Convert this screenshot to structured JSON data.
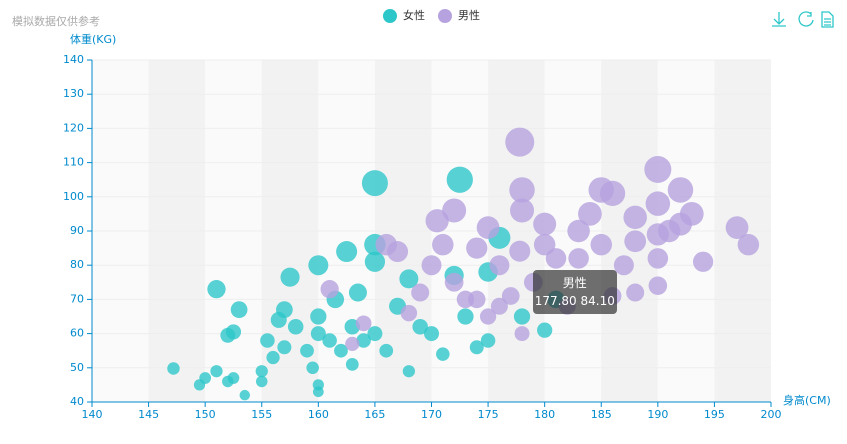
{
  "chart_data": {
    "type": "scatter",
    "subtitle": "模拟数据仅供参考",
    "x_label": "身高(CM)",
    "y_label": "体重(KG)",
    "xlim": [
      140,
      200
    ],
    "xticks": [
      140,
      145,
      150,
      155,
      160,
      165,
      170,
      175,
      180,
      185,
      190,
      195,
      200
    ],
    "ylim": [
      40,
      140
    ],
    "yticks": [
      40,
      50,
      60,
      70,
      80,
      90,
      100,
      110,
      120,
      130,
      140
    ],
    "grid": true,
    "tooltip": {
      "title": "男性",
      "text": "177.80 84.10"
    },
    "series": [
      {
        "name": "女性",
        "color": "#2ec7c9",
        "x": [
          147.2,
          149.5,
          150,
          151,
          151,
          152,
          152.5,
          152,
          153,
          152.5,
          153.5,
          155,
          155,
          155.5,
          156,
          156.5,
          157,
          157,
          158,
          157.5,
          159,
          159.5,
          160,
          160,
          160,
          160,
          160,
          161,
          161.5,
          162,
          162.5,
          163,
          163,
          163.5,
          164,
          165,
          165,
          165,
          165,
          166,
          167,
          168,
          168,
          169,
          170,
          171,
          172,
          172.5,
          173,
          174,
          175,
          175,
          176,
          180,
          181,
          178
        ],
        "y": [
          49.8,
          45,
          47,
          73,
          49,
          59.5,
          60.5,
          46,
          67,
          47,
          42,
          49,
          46,
          58,
          53,
          64,
          67,
          56,
          62,
          76.5,
          55,
          50,
          80,
          65,
          60,
          45,
          43,
          58,
          70,
          55,
          84,
          62,
          51,
          72,
          58,
          104,
          86,
          81,
          60,
          55,
          68,
          76,
          49,
          62,
          60,
          54,
          77,
          105,
          65,
          56,
          58,
          78,
          88,
          61,
          70,
          65
        ]
      },
      {
        "name": "男性",
        "color": "#b6a2de",
        "x": [
          161,
          163,
          164,
          166,
          167,
          168,
          169,
          170,
          170.5,
          171,
          172,
          172,
          173,
          174,
          175,
          175,
          176,
          177,
          177.8,
          177.8,
          178,
          178,
          178,
          179,
          180,
          180,
          181,
          182,
          183,
          183,
          184,
          185,
          185,
          186,
          186,
          187,
          188,
          188,
          188,
          190,
          190,
          190,
          190,
          190,
          191,
          192,
          192,
          193,
          194,
          197,
          198,
          176,
          174
        ],
        "y": [
          73,
          57,
          63,
          86,
          84,
          66,
          72,
          80,
          93,
          86,
          96,
          75,
          70,
          85,
          91,
          65,
          80,
          71,
          84.1,
          116,
          102,
          96,
          60,
          75,
          92,
          86,
          82,
          68,
          90,
          82,
          95,
          102,
          86,
          71,
          101,
          80,
          94,
          72,
          87,
          108,
          98,
          89,
          82,
          74,
          90,
          102,
          92,
          95,
          81,
          91,
          86,
          68,
          70
        ]
      }
    ]
  }
}
